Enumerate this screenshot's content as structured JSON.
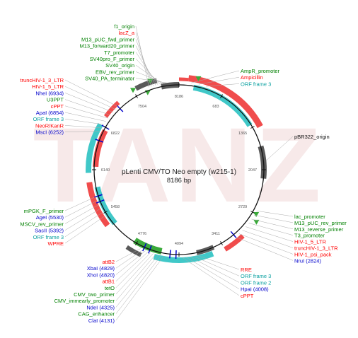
{
  "title": "pLenti CMV/TO Neo empty (w215-1)",
  "size_label": "8186 bp",
  "watermark": "TANZ",
  "colors": {
    "red": "#ff0000",
    "green": "#008000",
    "teal": "#0aa0a0",
    "blue": "#0000cc",
    "feature_red": "#f04c4c",
    "feature_cyan": "#40c8c8",
    "feature_green": "#3aaa3a",
    "feature_gray": "#5a5a5a",
    "ring": "#111111"
  },
  "ticks": [
    "8186",
    "683",
    "1365",
    "2047",
    "2729",
    "3411",
    "4094",
    "4776",
    "5458",
    "6140",
    "6822",
    "7504"
  ],
  "labels_left_top": [
    {
      "text": "f1_origin",
      "color": "green"
    },
    {
      "text": "lacZ_a",
      "color": "red"
    },
    {
      "text": "M13_pUC_fwd_primer",
      "color": "green"
    },
    {
      "text": "M13_forward20_primer",
      "color": "green"
    },
    {
      "text": "T7_promoter",
      "color": "green"
    },
    {
      "text": "SV40pro_F_primer",
      "color": "green"
    },
    {
      "text": "SV40_origin",
      "color": "green"
    },
    {
      "text": "EBV_rev_primer",
      "color": "green"
    },
    {
      "text": "SV40_PA_terminator",
      "color": "green"
    }
  ],
  "labels_left_mid": [
    {
      "text": "truncHIV-1_3_LTR",
      "color": "red"
    },
    {
      "text": "HIV-1_5_LTR",
      "color": "red"
    },
    {
      "text": "NheI (6934)",
      "color": "blue"
    },
    {
      "text": "U3PPT",
      "color": "green"
    },
    {
      "text": "cPPT",
      "color": "red"
    },
    {
      "text": "ApaI (6854)",
      "color": "blue"
    },
    {
      "text": "ORF frame 3",
      "color": "teal"
    },
    {
      "text": "NeoR/KanR",
      "color": "red"
    },
    {
      "text": "MscI (6252)",
      "color": "blue"
    }
  ],
  "labels_left_lower": [
    {
      "text": "mPGK_F_primer",
      "color": "green"
    },
    {
      "text": "AgeI (5530)",
      "color": "blue"
    },
    {
      "text": "MSCV_rev_primer",
      "color": "green"
    },
    {
      "text": "SacII (5392)",
      "color": "blue"
    },
    {
      "text": "ORF frame 3",
      "color": "teal"
    },
    {
      "text": "WPRE",
      "color": "red"
    }
  ],
  "labels_bottom_left": [
    {
      "text": "attB2",
      "color": "red"
    },
    {
      "text": "XbaI (4829)",
      "color": "blue"
    },
    {
      "text": "XhoI (4820)",
      "color": "blue"
    },
    {
      "text": "attB1",
      "color": "red"
    },
    {
      "text": "tetO",
      "color": "green"
    },
    {
      "text": "CMV_two_primer",
      "color": "green"
    },
    {
      "text": "CMV_immearly_promoter",
      "color": "green"
    },
    {
      "text": "NdeI (4325)",
      "color": "blue"
    },
    {
      "text": "CAG_enhancer",
      "color": "green"
    },
    {
      "text": "ClaI (4131)",
      "color": "blue"
    }
  ],
  "labels_bottom_right": [
    {
      "text": "RRE",
      "color": "red"
    },
    {
      "text": "ORF frame 3",
      "color": "teal"
    },
    {
      "text": "ORF frame 2",
      "color": "teal"
    },
    {
      "text": "HpaI (4008)",
      "color": "blue"
    },
    {
      "text": "cPPT",
      "color": "red"
    }
  ],
  "labels_right_top": [
    {
      "text": "AmpR_promoter",
      "color": "green"
    },
    {
      "text": "Ampicillin",
      "color": "red"
    },
    {
      "text": "ORF frame 3",
      "color": "teal"
    }
  ],
  "labels_right_mid": [
    {
      "text": "pBR322_origin",
      "color": "ring"
    }
  ],
  "labels_right_lower": [
    {
      "text": "lac_promoter",
      "color": "green"
    },
    {
      "text": "M13_pUC_rev_primer",
      "color": "green"
    },
    {
      "text": "M13_reverse_primer",
      "color": "green"
    },
    {
      "text": "T3_promoter",
      "color": "green"
    },
    {
      "text": "HIV-1_5_LTR",
      "color": "red"
    },
    {
      "text": "truncHIV-1_3_LTR",
      "color": "red"
    },
    {
      "text": "HIV-1_psi_pack",
      "color": "red"
    },
    {
      "text": "NruI (2824)",
      "color": "blue"
    }
  ]
}
